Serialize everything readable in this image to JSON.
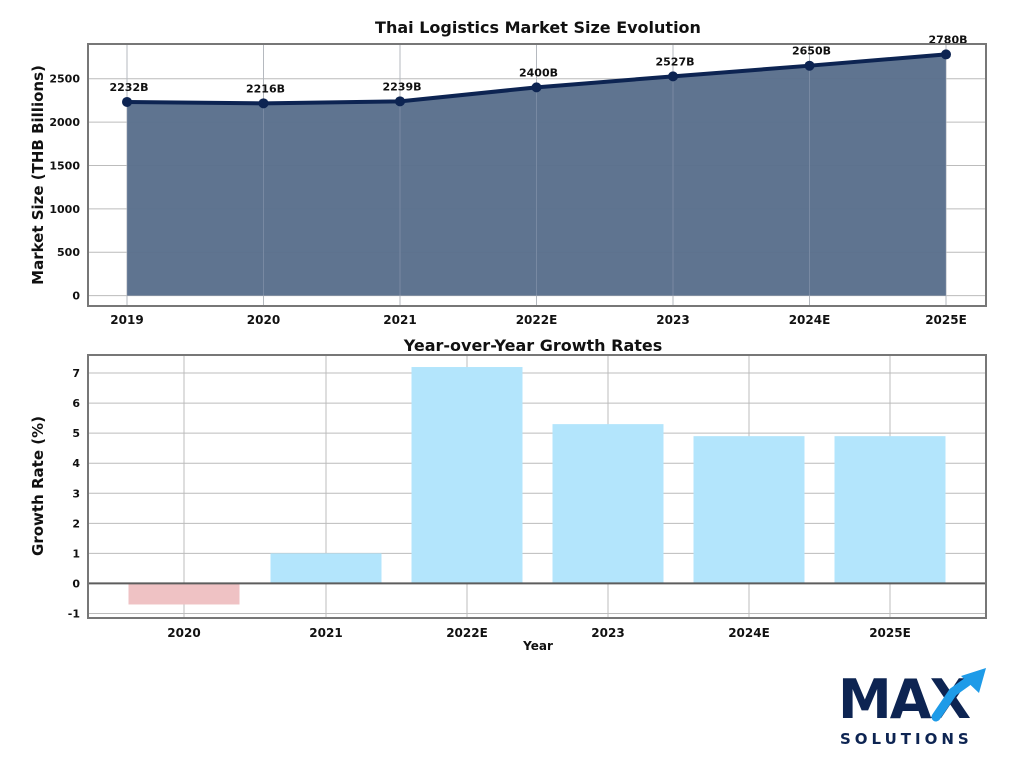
{
  "chart_data": [
    {
      "type": "area",
      "title": "Thai Logistics Market Size Evolution",
      "xlabel": "",
      "ylabel": "Market Size (THB Billions)",
      "categories": [
        "2019",
        "2020",
        "2021",
        "2022E",
        "2023",
        "2024E",
        "2025E"
      ],
      "values": [
        2232,
        2216,
        2239,
        2400,
        2527,
        2650,
        2780
      ],
      "data_labels": [
        "2232B",
        "2216B",
        "2239B",
        "2400B",
        "2527B",
        "2650B",
        "2780B"
      ],
      "ylim": [
        -120,
        2900
      ],
      "yticks": [
        0,
        500,
        1000,
        1500,
        2000,
        2500
      ],
      "grid": true,
      "colors": {
        "fill": "#5a6f8c",
        "line": "#0d2452",
        "marker": "#0d2452"
      }
    },
    {
      "type": "bar",
      "title": "Year-over-Year Growth Rates",
      "xlabel": "Year",
      "ylabel": "Growth Rate (%)",
      "categories": [
        "2020",
        "2021",
        "2022E",
        "2023",
        "2024E",
        "2025E"
      ],
      "values": [
        -0.7,
        1.0,
        7.2,
        5.3,
        4.9,
        4.9
      ],
      "ylim": [
        -1.15,
        7.6
      ],
      "yticks": [
        -1,
        0,
        1,
        2,
        3,
        4,
        5,
        6,
        7
      ],
      "grid": true,
      "colors": {
        "positive": "#b3e5fc",
        "negative": "#efc2c4",
        "zero_line": "#5d5d5d"
      }
    }
  ],
  "logo": {
    "text_main": "MAX",
    "text_sub": "SOLUTIONS",
    "colors": {
      "navy": "#0d2452",
      "blue": "#1e9be8"
    }
  }
}
